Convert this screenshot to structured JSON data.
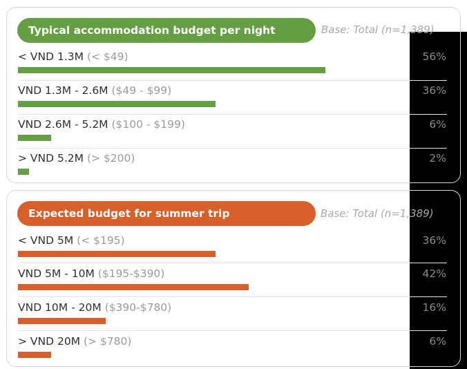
{
  "chart_data": [
    {
      "type": "bar",
      "title": "Typical accommodation budget per night",
      "base_note": "Base: Total (n=1,389)",
      "color": "#64a043",
      "categories": [
        "< VND 1.3M",
        "VND 1.3M - 2.6M",
        "VND 2.6M - 5.2M",
        "> VND 5.2M"
      ],
      "usd_ranges": [
        "(< $49)",
        "($49 - $99)",
        "($100 - $199)",
        "(> $200)"
      ],
      "values": [
        56,
        36,
        6,
        2
      ],
      "value_labels": [
        "56%",
        "36%",
        "6%",
        "2%"
      ],
      "xlim": [
        0,
        100
      ]
    },
    {
      "type": "bar",
      "title": "Expected budget for summer trip",
      "base_note": "Base: Total (n=1,389)",
      "color": "#d75f2a",
      "categories": [
        "< VND 5M",
        "VND 5M - 10M",
        "VND 10M - 20M",
        "> VND 20M"
      ],
      "usd_ranges": [
        "(< $195)",
        "($195-$390)",
        "($390-$780)",
        "(> $780)"
      ],
      "values": [
        36,
        42,
        16,
        6
      ],
      "value_labels": [
        "36%",
        "42%",
        "16%",
        "6%"
      ],
      "xlim": [
        0,
        100
      ]
    }
  ]
}
